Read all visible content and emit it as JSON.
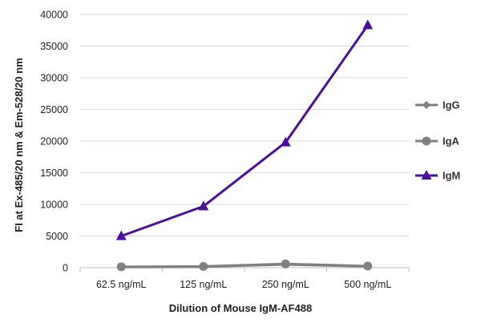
{
  "chart_data": {
    "type": "line",
    "xlabel": "Dilution of Mouse IgM-AF488",
    "ylabel": "FI at Ex-485/20 nm & Em-528/20 nm",
    "categories": [
      "62.5 ng/mL",
      "125 ng/mL",
      "250 ng/mL",
      "500 ng/mL"
    ],
    "ylim": [
      0,
      40000
    ],
    "yticks": [
      0,
      5000,
      10000,
      15000,
      20000,
      25000,
      30000,
      35000,
      40000
    ],
    "grid": true,
    "legend_position": "right",
    "series": [
      {
        "name": "IgG",
        "values": [
          100,
          150,
          500,
          200
        ],
        "color": "#7f7f7f",
        "marker": "diamond"
      },
      {
        "name": "IgA",
        "values": [
          150,
          200,
          600,
          250
        ],
        "color": "#808080",
        "marker": "circle"
      },
      {
        "name": "IgM",
        "values": [
          5000,
          9700,
          19800,
          38300
        ],
        "color": "#4b0f9a",
        "marker": "triangle"
      }
    ]
  }
}
